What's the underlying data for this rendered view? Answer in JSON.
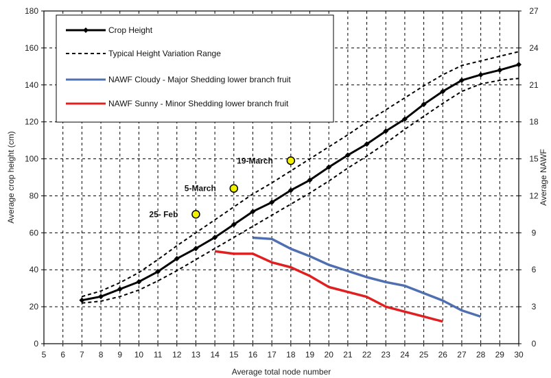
{
  "chart_data": {
    "type": "line",
    "xlabel": "Average total node number",
    "ylabel": "Average crop height (cm)",
    "y2label": "Average NAWF",
    "xlim": [
      5,
      30
    ],
    "ylim": [
      0,
      180
    ],
    "y2lim": [
      0,
      27
    ],
    "xticks": [
      5,
      6,
      7,
      8,
      9,
      10,
      11,
      12,
      13,
      14,
      15,
      16,
      17,
      18,
      19,
      20,
      21,
      22,
      23,
      24,
      25,
      26,
      27,
      28,
      29,
      30
    ],
    "yticks": [
      0,
      20,
      40,
      60,
      80,
      100,
      120,
      140,
      160,
      180
    ],
    "y2ticks": [
      0,
      3,
      6,
      9,
      12,
      15,
      18,
      21,
      24,
      27
    ],
    "grid": true,
    "legend_position": "top-left",
    "legend": [
      {
        "label": "Crop Height",
        "series": "crop"
      },
      {
        "label": "Typical Height Variation Range",
        "series": "range"
      },
      {
        "label": "NAWF Cloudy - Major Shedding lower branch fruit",
        "series": "cloudy"
      },
      {
        "label": "NAWF Sunny - Minor Shedding lower branch fruit",
        "series": "sunny"
      }
    ],
    "series": [
      {
        "key": "crop",
        "name": "Crop Height",
        "axis": "left",
        "color": "#000000",
        "style": "solid-markers",
        "x": [
          7,
          8,
          9,
          10,
          11,
          12,
          13,
          14,
          15,
          16,
          17,
          18,
          19,
          20,
          21,
          22,
          23,
          24,
          25,
          26,
          27,
          28,
          29,
          30
        ],
        "y": [
          23.5,
          25.5,
          29.5,
          33.5,
          39,
          46,
          51.5,
          57.5,
          64.5,
          71.5,
          76.5,
          83,
          88.5,
          95.5,
          102,
          108,
          115,
          121.5,
          129.5,
          136.5,
          142.5,
          145.5,
          148,
          151
        ]
      },
      {
        "key": "range_upper",
        "name": "Typical Height Variation Range",
        "axis": "left",
        "color": "#000000",
        "style": "dashed",
        "x": [
          7,
          8,
          9,
          10,
          11,
          12,
          13,
          14,
          15,
          16,
          17,
          18,
          19,
          20,
          21,
          22,
          23,
          24,
          25,
          26,
          27,
          28,
          29,
          30
        ],
        "y": [
          25.5,
          28.5,
          33,
          38.5,
          45.5,
          53,
          60,
          67,
          74,
          81,
          87,
          93.5,
          100,
          106.5,
          113,
          120,
          126.5,
          133,
          139.5,
          145.5,
          150.5,
          153,
          155.5,
          158
        ]
      },
      {
        "key": "range_lower",
        "name": "Typical Height Variation Range",
        "axis": "left",
        "color": "#000000",
        "style": "dashed",
        "x": [
          7,
          8,
          9,
          10,
          11,
          12,
          13,
          14,
          15,
          16,
          17,
          18,
          19,
          20,
          21,
          22,
          23,
          24,
          25,
          26,
          27,
          28,
          29,
          30
        ],
        "y": [
          22,
          23,
          25.5,
          29,
          34,
          39.5,
          45.5,
          51.5,
          57.5,
          63.5,
          69.5,
          75.5,
          81.5,
          88,
          95,
          101.5,
          108.5,
          116,
          123,
          130,
          136.5,
          140.5,
          142.5,
          143.5
        ]
      },
      {
        "key": "cloudy",
        "name": "NAWF Cloudy - Major Shedding lower branch fruit",
        "axis": "right",
        "color": "#4f6fb0",
        "style": "solid",
        "x": [
          16,
          17,
          18,
          19,
          20,
          21,
          22,
          23,
          24,
          25,
          26,
          27,
          28
        ],
        "y": [
          8.6,
          8.5,
          7.7,
          7.1,
          6.4,
          5.9,
          5.4,
          5.0,
          4.7,
          4.1,
          3.5,
          2.7,
          2.2
        ]
      },
      {
        "key": "sunny",
        "name": "NAWF Sunny - Minor Shedding lower branch fruit",
        "axis": "right",
        "color": "#e02020",
        "style": "solid",
        "x": [
          14,
          15,
          16,
          17,
          18,
          19,
          20,
          21,
          22,
          23,
          24,
          25,
          26
        ],
        "y": [
          7.5,
          7.3,
          7.3,
          6.6,
          6.2,
          5.5,
          4.6,
          4.2,
          3.8,
          3.0,
          2.6,
          2.2,
          1.8
        ]
      }
    ],
    "annotations": [
      {
        "label": "25- Feb",
        "x": 13,
        "y": 70
      },
      {
        "label": "5-March",
        "x": 15,
        "y": 84
      },
      {
        "label": "19-March",
        "x": 18,
        "y": 99
      }
    ]
  }
}
